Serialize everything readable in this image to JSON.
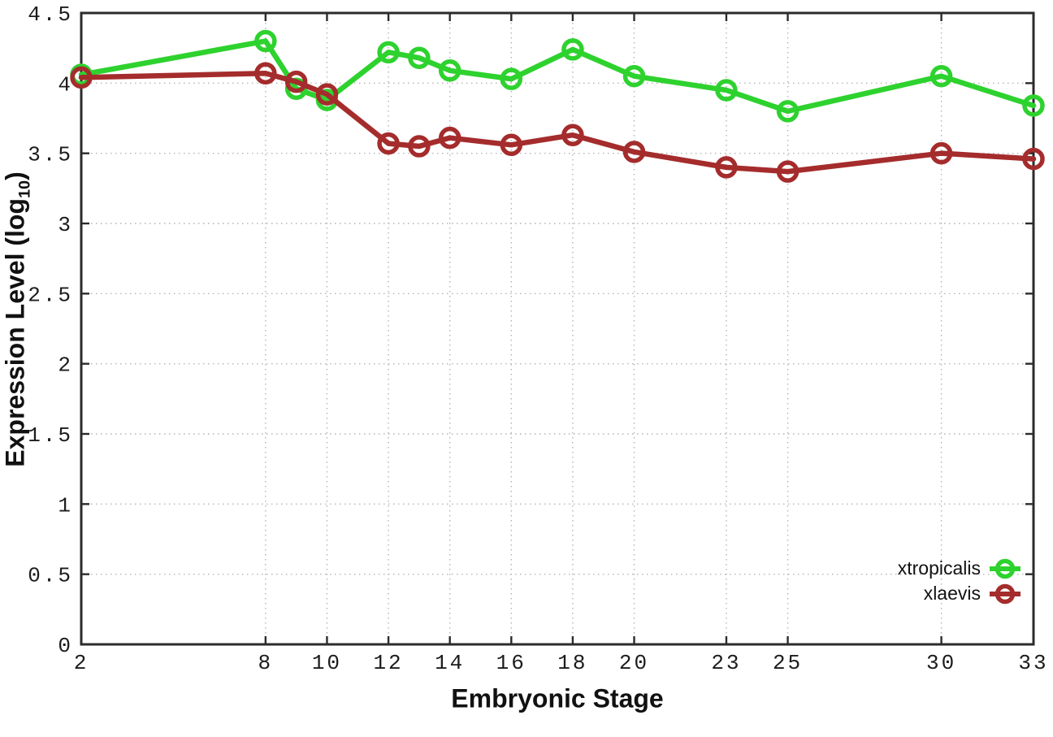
{
  "chart_data": {
    "type": "line",
    "title": "",
    "xlabel": "Embryonic Stage",
    "ylabel": "Expression Level (log10)",
    "ylabel_parts": {
      "pre": "Expression Level (log",
      "sub": "10",
      "post": ")"
    },
    "xlim": [
      2,
      33
    ],
    "ylim": [
      0,
      4.5
    ],
    "grid": true,
    "legend_position": "bottom-right-inside",
    "x_ticks": [
      2,
      8,
      10,
      12,
      14,
      16,
      18,
      20,
      23,
      25,
      30,
      33
    ],
    "x_tick_labels": [
      "2",
      "8",
      "10",
      "12",
      "14",
      "16",
      "18",
      "20",
      "23",
      "25",
      "30",
      "33"
    ],
    "y_ticks": [
      0,
      0.5,
      1,
      1.5,
      2,
      2.5,
      3,
      3.5,
      4,
      4.5
    ],
    "y_tick_labels": [
      "0",
      "0.5",
      "1",
      "1.5",
      "2",
      "2.5",
      "3",
      "3.5",
      "4",
      "4.5"
    ],
    "x": [
      2,
      8,
      9,
      10,
      12,
      13,
      14,
      16,
      18,
      20,
      23,
      25,
      30,
      33
    ],
    "series": [
      {
        "name": "xtropicalis",
        "color": "#2ed22e",
        "values": [
          4.06,
          4.3,
          3.96,
          3.88,
          4.22,
          4.18,
          4.09,
          4.03,
          4.24,
          4.05,
          3.95,
          3.8,
          4.05,
          3.84
        ]
      },
      {
        "name": "xlaevis",
        "color": "#a52c2c",
        "values": [
          4.04,
          4.07,
          4.01,
          3.92,
          3.57,
          3.55,
          3.61,
          3.56,
          3.63,
          3.51,
          3.4,
          3.37,
          3.5,
          3.46
        ]
      }
    ],
    "axis_color": "#2b2b2b",
    "grid_color": "#b4b4b4",
    "tick_label_color": "#1c1c1c",
    "background": "#ffffff"
  }
}
